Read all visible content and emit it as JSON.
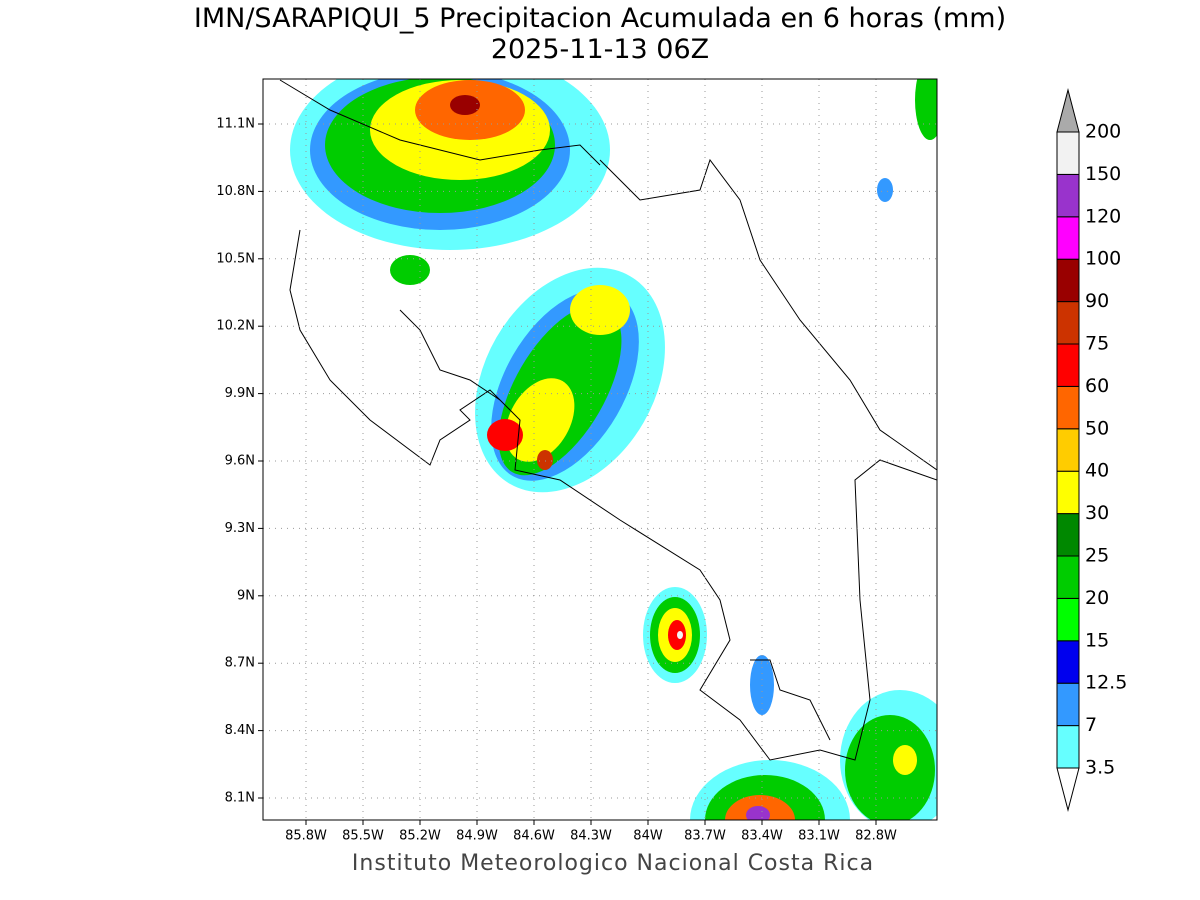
{
  "header": {
    "title": "IMN/SARAPIQUI_5 Precipitacion Acumulada en 6 horas (mm)",
    "subtitle": "2025-11-13 06Z"
  },
  "map": {
    "lon_labels": [
      "85.8W",
      "85.5W",
      "85.2W",
      "84.9W",
      "84.6W",
      "84.3W",
      "84W",
      "83.7W",
      "83.4W",
      "83.1W",
      "82.8W"
    ],
    "lat_labels": [
      "11.1N",
      "10.8N",
      "10.5N",
      "10.2N",
      "9.9N",
      "9.6N",
      "9.3N",
      "9N",
      "8.7N",
      "8.4N",
      "8.1N"
    ]
  },
  "colorbar": {
    "labels": [
      "3.5",
      "7",
      "12.5",
      "15",
      "20",
      "25",
      "30",
      "40",
      "50",
      "60",
      "75",
      "90",
      "100",
      "120",
      "150",
      "200"
    ],
    "colors": [
      "#66ffff",
      "#3399ff",
      "#0000ee",
      "#00ff00",
      "#00cc00",
      "#008800",
      "#ffff00",
      "#ffcc00",
      "#ff6600",
      "#ff0000",
      "#cc3300",
      "#990000",
      "#ff00ff",
      "#9933cc",
      "#f2f2f2"
    ],
    "under_color": "#ffffff",
    "over_color": "#aaaaaa"
  },
  "footer": "Instituto Meteorologico Nacional Costa Rica"
}
